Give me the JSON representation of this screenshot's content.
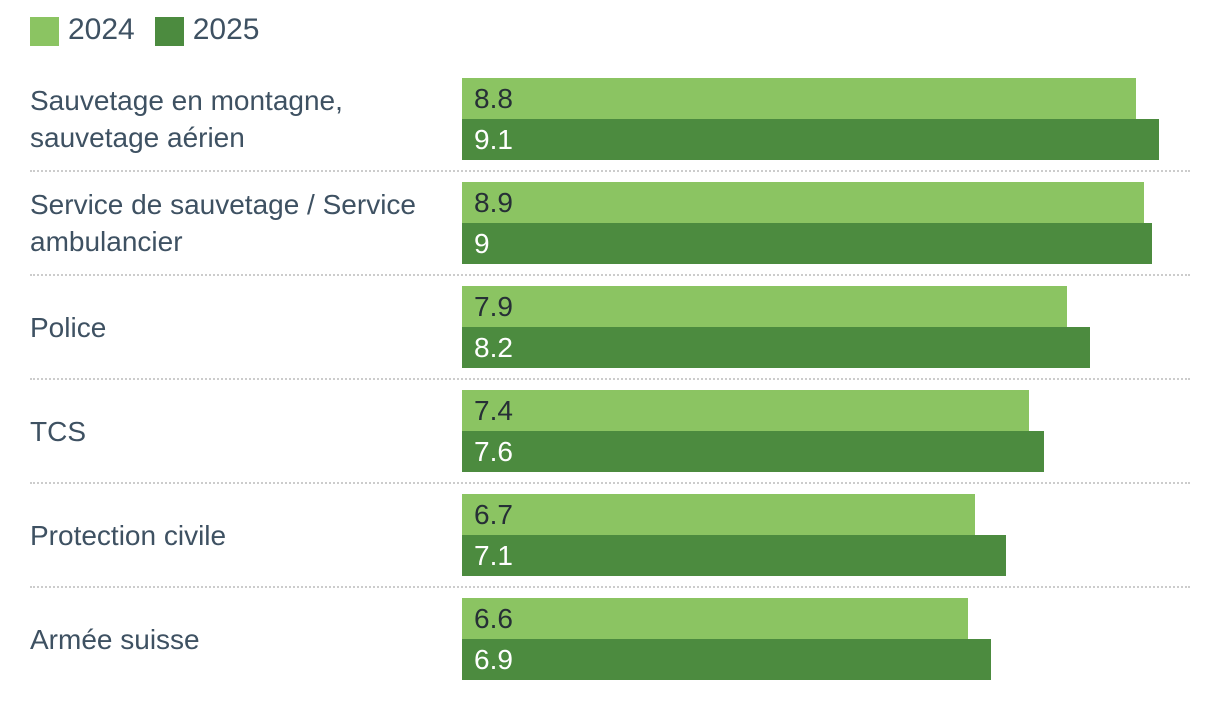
{
  "legend": {
    "items": [
      {
        "label": "2024",
        "color": "#8bc462"
      },
      {
        "label": "2025",
        "color": "#4c8b3f"
      }
    ]
  },
  "chart_data": {
    "type": "bar",
    "orientation": "horizontal",
    "title": "",
    "categories": [
      "Sauvetage en montagne, sauvetage aérien",
      "Service de sauvetage / Service ambulancier",
      "Police",
      "TCS",
      "Protection civile",
      "Armée suisse"
    ],
    "series": [
      {
        "name": "2024",
        "color": "#8bc462",
        "value_text_color": "#262f36",
        "values": [
          8.8,
          8.9,
          7.9,
          7.4,
          6.7,
          6.6
        ],
        "labels": [
          "8.8",
          "8.9",
          "7.9",
          "7.4",
          "6.7",
          "6.6"
        ]
      },
      {
        "name": "2025",
        "color": "#4c8b3f",
        "value_text_color": "#ffffff",
        "values": [
          9.1,
          9.0,
          8.2,
          7.6,
          7.1,
          6.9
        ],
        "labels": [
          "9.1",
          "9",
          "8.2",
          "7.6",
          "7.1",
          "6.9"
        ]
      }
    ],
    "xlim": [
      0,
      9.5
    ],
    "grid": false,
    "legend_position": "top-left",
    "value_labels": true,
    "divider_style": "dotted",
    "category_label_color": "#3e5162",
    "divider_color": "#cccccc",
    "background_color": "#ffffff"
  }
}
